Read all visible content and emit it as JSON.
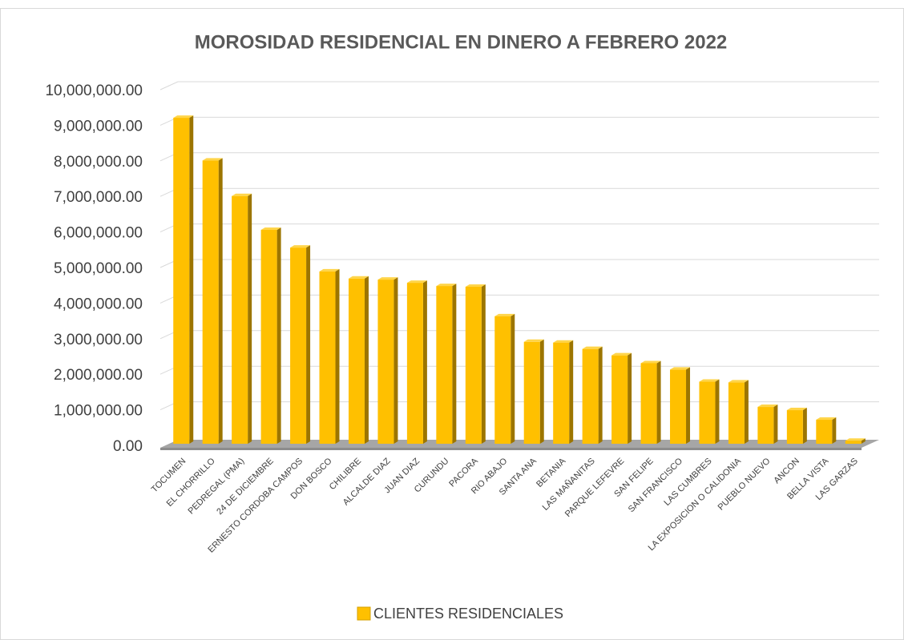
{
  "chart_data": {
    "type": "bar3d",
    "title": "MOROSIDAD RESIDENCIAL EN DINERO A FEBRERO 2022",
    "categories": [
      "TOCUMEN",
      "EL CHORRILLO",
      "PEDREGAL (PMA)",
      "24 DE DICIEMBRE",
      "ERNESTO CORDOBA CAMPOS",
      "DON BOSCO",
      "CHILIBRE",
      "ALCALDE DIAZ",
      "JUAN DIAZ",
      "CURUNDU",
      "PACORA",
      "RIO ABAJO",
      "SANTA ANA",
      "BETANIA",
      "LAS MAÑANITAS",
      "PARQUE LEFEVRE",
      "SAN FELIPE",
      "SAN FRANCISCO",
      "LAS CUMBRES",
      "LA EXPOSICION O CALIDONIA",
      "PUEBLO NUEVO",
      "ANCON",
      "BELLA VISTA",
      "LAS GARZAS"
    ],
    "series": [
      {
        "name": "CLIENTES RESIDENCIALES",
        "color": "#ffc000",
        "values": [
          9300000,
          8100000,
          7100000,
          6150000,
          5650000,
          4980000,
          4780000,
          4750000,
          4660000,
          4570000,
          4550000,
          3720000,
          3000000,
          2980000,
          2800000,
          2620000,
          2400000,
          2220000,
          1880000,
          1860000,
          1170000,
          1080000,
          810000,
          220000
        ]
      }
    ],
    "ylim": [
      0,
      10000000
    ],
    "yticks": [
      {
        "value": 0,
        "label": "0.00"
      },
      {
        "value": 1000000,
        "label": "1,000,000.00"
      },
      {
        "value": 2000000,
        "label": "2,000,000.00"
      },
      {
        "value": 3000000,
        "label": "3,000,000.00"
      },
      {
        "value": 4000000,
        "label": "4,000,000.00"
      },
      {
        "value": 5000000,
        "label": "5,000,000.00"
      },
      {
        "value": 6000000,
        "label": "6,000,000.00"
      },
      {
        "value": 7000000,
        "label": "7,000,000.00"
      },
      {
        "value": 8000000,
        "label": "8,000,000.00"
      },
      {
        "value": 9000000,
        "label": "9,000,000.00"
      },
      {
        "value": 10000000,
        "label": "10,000,000.00"
      }
    ],
    "grid": true,
    "legend": "bottom"
  }
}
